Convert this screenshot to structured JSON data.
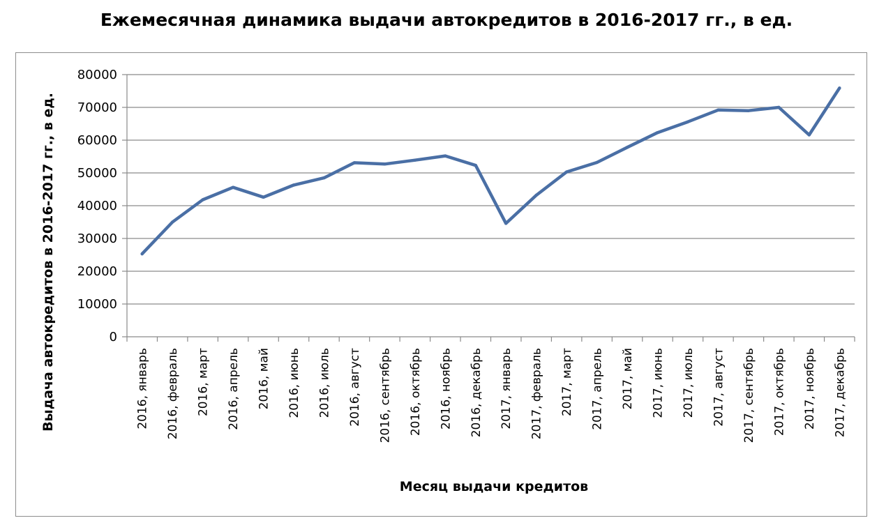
{
  "chart_data": {
    "type": "line",
    "title": "Ежемесячная динамика выдачи автокредитов в 2016-2017 гг., в ед.",
    "xlabel": "Месяц выдачи кредитов",
    "ylabel": "Выдача автокредитов в 2016-2017 гг., в ед.",
    "ylim": [
      0,
      80000
    ],
    "yticks": [
      "0",
      "10000",
      "20000",
      "30000",
      "40000",
      "50000",
      "60000",
      "70000",
      "80000"
    ],
    "grid": true,
    "legend": "none",
    "line_color": "#4a6fa5",
    "categories": [
      "2016, январь",
      "2016, февраль",
      "2016, март",
      "2016, апрель",
      "2016, май",
      "2016, июнь",
      "2016, июль",
      "2016, август",
      "2016, сентябрь",
      "2016, октябрь",
      "2016, ноябрь",
      "2016, декабрь",
      "2017, январь",
      "2017, февраль",
      "2017, март",
      "2017, апрель",
      "2017, май",
      "2017, июнь",
      "2017, июль",
      "2017, август",
      "2017, сентябрь",
      "2017, октябрь",
      "2017, ноябрь",
      "2017, декабрь"
    ],
    "series": [
      {
        "values": [
          25300,
          35000,
          41800,
          45600,
          42600,
          46300,
          48500,
          53100,
          52700,
          53900,
          55200,
          52300,
          34600,
          43200,
          50300,
          53200,
          57800,
          62300,
          65600,
          69200,
          69000,
          70000,
          61600,
          75900
        ]
      }
    ]
  }
}
